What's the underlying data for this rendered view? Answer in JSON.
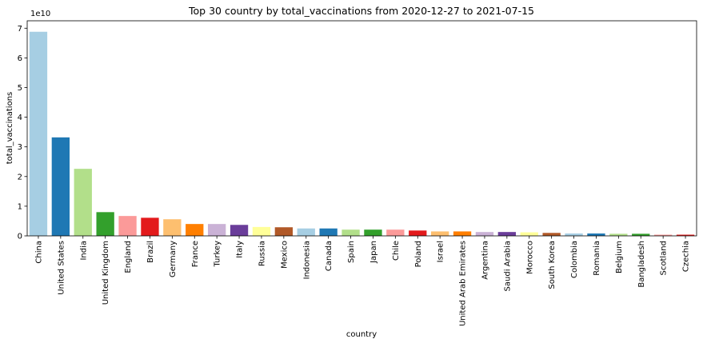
{
  "chart_data": {
    "type": "bar",
    "title": "Top 30 country by total_vaccinations from 2020-12-27 to 2021-07-15",
    "xlabel": "country",
    "ylabel": "total_vaccinations",
    "y_offset_label": "1e10",
    "ylim": [
      0,
      7.25
    ],
    "yticks": [
      "0",
      "1",
      "2",
      "3",
      "4",
      "5",
      "6",
      "7"
    ],
    "grid": false,
    "categories": [
      "China",
      "United States",
      "India",
      "United Kingdom",
      "England",
      "Brazil",
      "Germany",
      "France",
      "Turkey",
      "Italy",
      "Russia",
      "Mexico",
      "Indonesia",
      "Canada",
      "Spain",
      "Japan",
      "Chile",
      "Poland",
      "Israel",
      "United Arab Emirates",
      "Argentina",
      "Saudi Arabia",
      "Morocco",
      "South Korea",
      "Colombia",
      "Romania",
      "Belgium",
      "Bangladesh",
      "Scotland",
      "Czechia"
    ],
    "values": [
      6.88,
      3.32,
      2.26,
      0.8,
      0.67,
      0.61,
      0.56,
      0.4,
      0.4,
      0.37,
      0.3,
      0.29,
      0.25,
      0.25,
      0.21,
      0.21,
      0.21,
      0.18,
      0.15,
      0.15,
      0.13,
      0.13,
      0.12,
      0.1,
      0.08,
      0.08,
      0.07,
      0.07,
      0.04,
      0.04
    ],
    "colors": [
      "#a6cee3",
      "#1f78b4",
      "#b2df8a",
      "#33a02c",
      "#fb9a99",
      "#e31a1c",
      "#fdbf6f",
      "#ff7f00",
      "#cab2d6",
      "#6a3d9a",
      "#ffff99",
      "#b15928"
    ]
  }
}
